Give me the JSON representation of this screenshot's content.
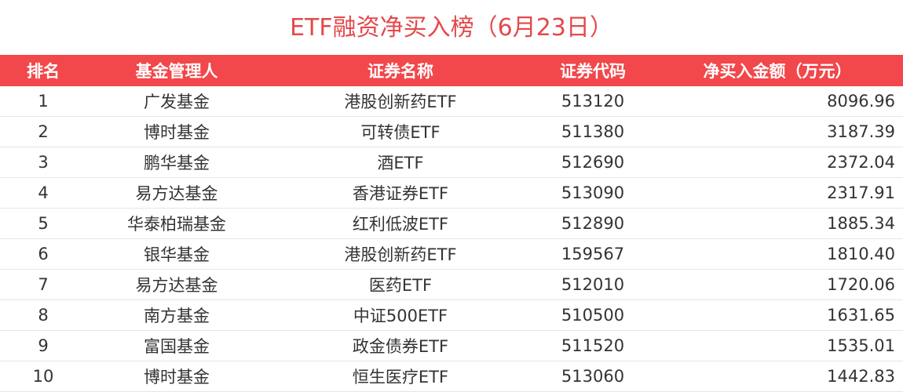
{
  "header": {
    "title": "ETF融资净买入榜（6月23日）"
  },
  "table": {
    "columns": [
      "排名",
      "基金管理人",
      "证券名称",
      "证券代码",
      "净买入金额（万元）"
    ],
    "rows": [
      [
        "1",
        "广发基金",
        "港股创新药ETF",
        "513120",
        "8096.96"
      ],
      [
        "2",
        "博时基金",
        "可转债ETF",
        "511380",
        "3187.39"
      ],
      [
        "3",
        "鹏华基金",
        "酒ETF",
        "512690",
        "2372.04"
      ],
      [
        "4",
        "易方达基金",
        "香港证券ETF",
        "513090",
        "2317.91"
      ],
      [
        "5",
        "华泰柏瑞基金",
        "红利低波ETF",
        "512890",
        "1885.34"
      ],
      [
        "6",
        "银华基金",
        "港股创新药ETF",
        "159567",
        "1810.40"
      ],
      [
        "7",
        "易方达基金",
        "医药ETF",
        "512010",
        "1720.06"
      ],
      [
        "8",
        "南方基金",
        "中证500ETF",
        "510500",
        "1631.65"
      ],
      [
        "9",
        "富国基金",
        "政金债券ETF",
        "511520",
        "1535.01"
      ],
      [
        "10",
        "博时基金",
        "恒生医疗ETF",
        "513060",
        "1442.83"
      ]
    ]
  }
}
